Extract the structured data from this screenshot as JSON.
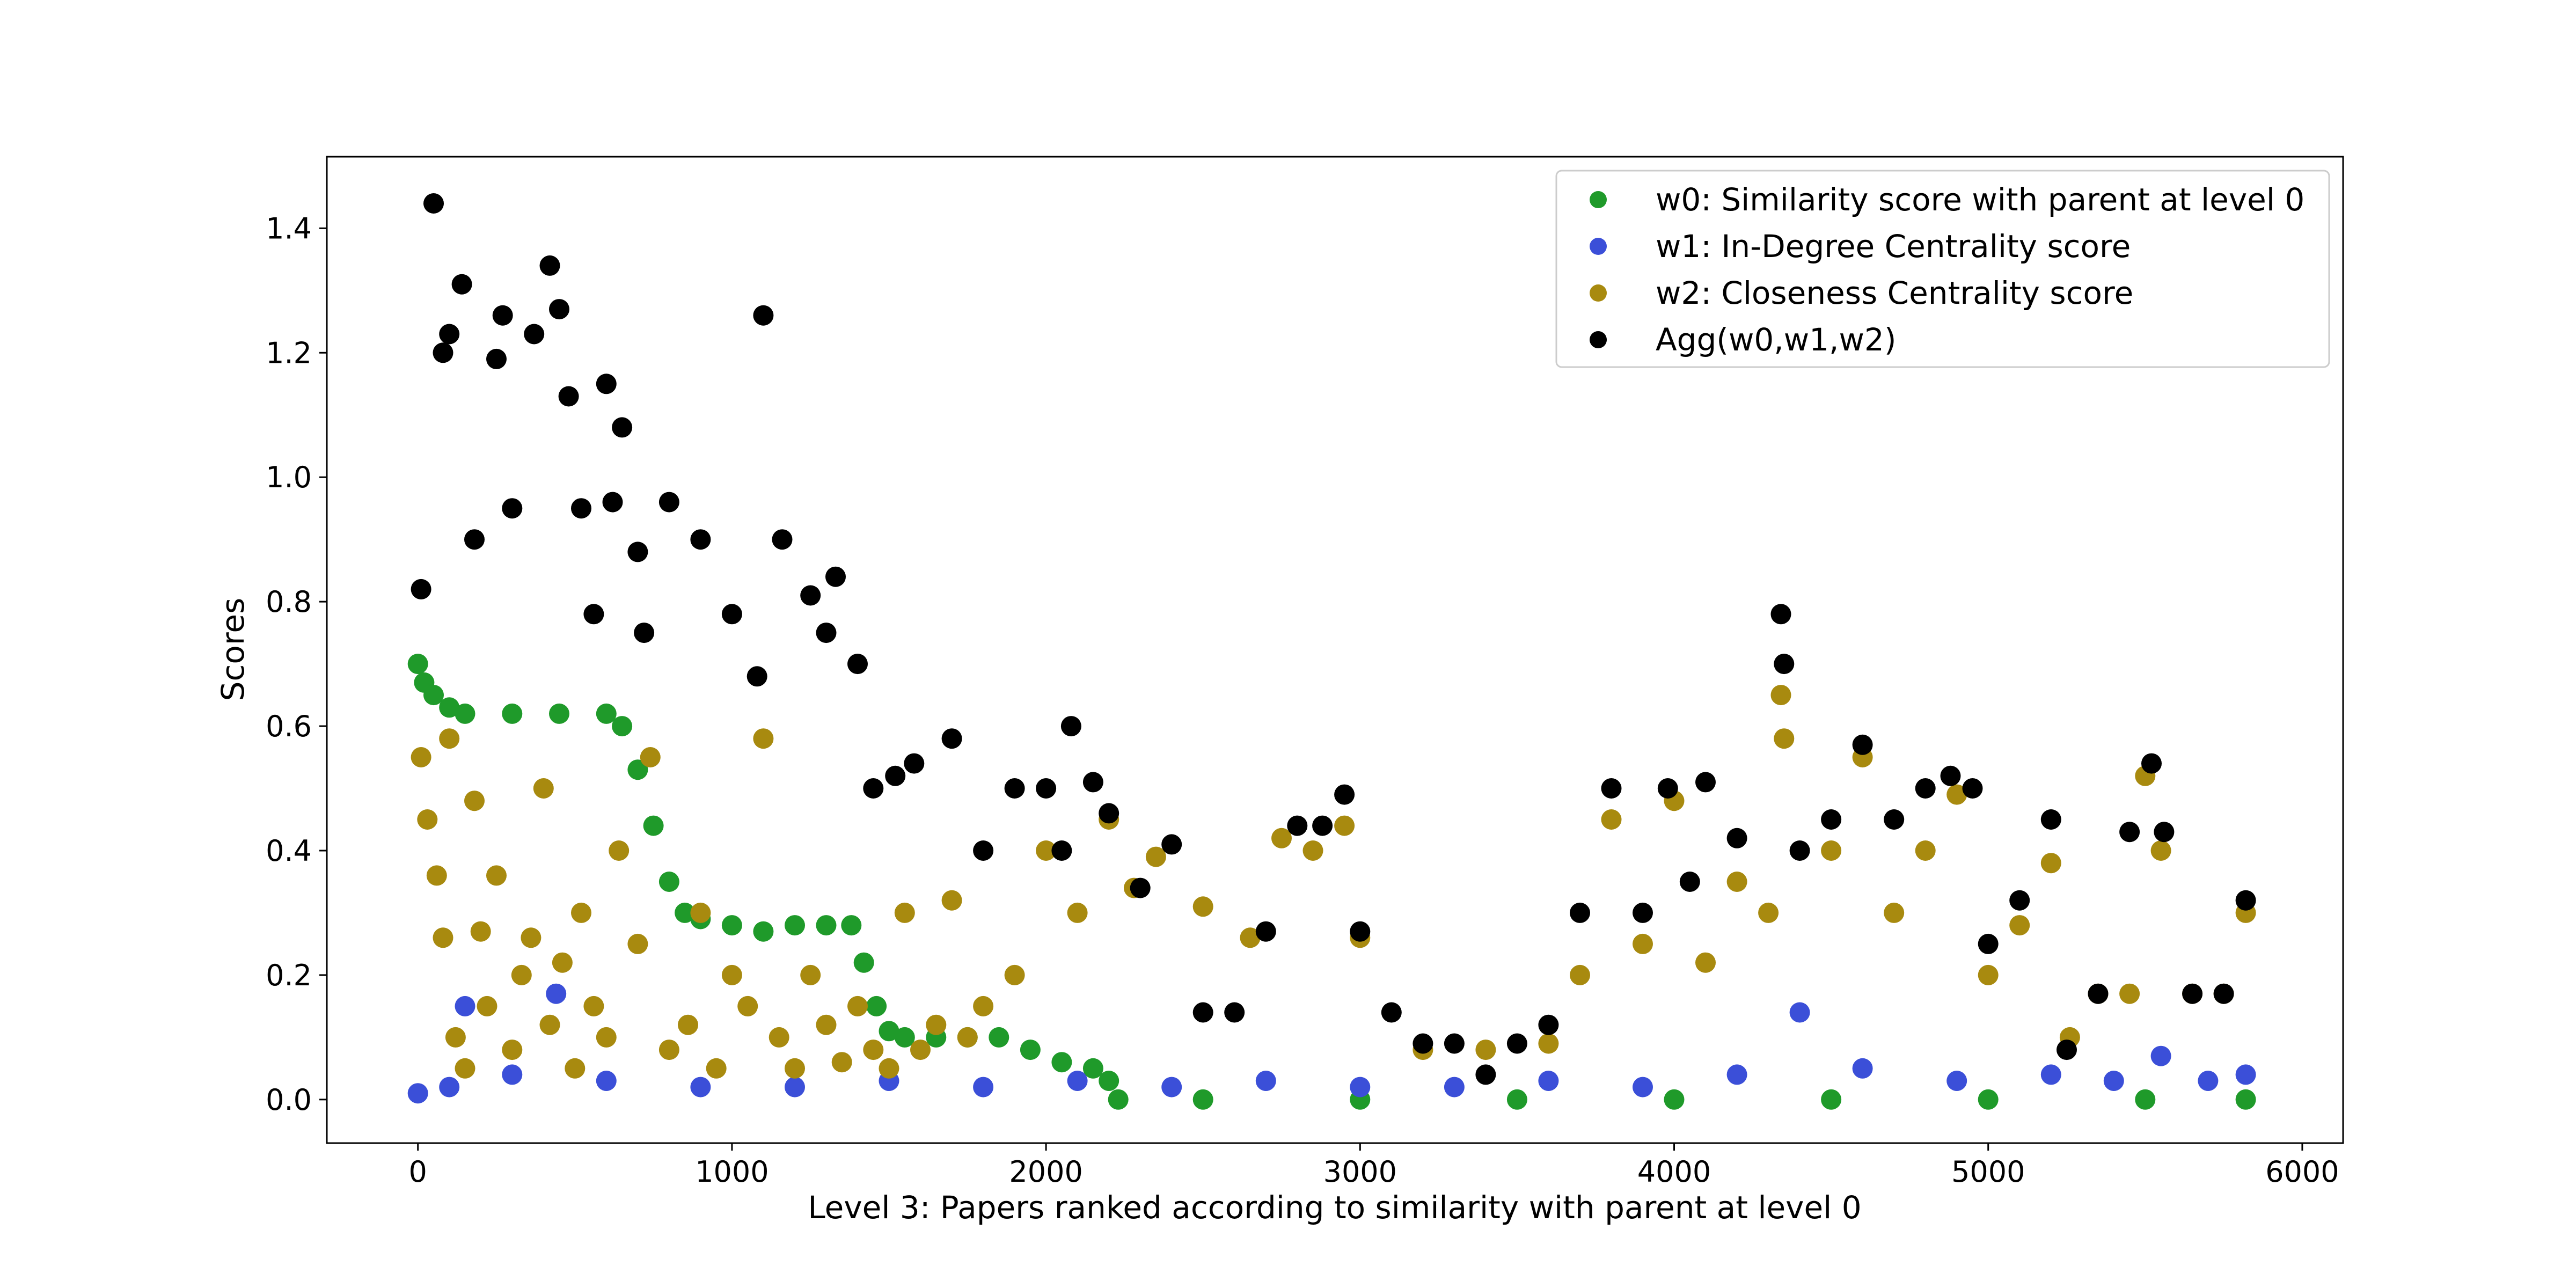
{
  "chart_data": {
    "type": "scatter",
    "title": "",
    "xlabel": "Level 3: Papers ranked according to similarity with parent at level 0",
    "ylabel": "Scores",
    "xlim": [
      -290,
      6130
    ],
    "ylim": [
      -0.07,
      1.515
    ],
    "x_ticks": [
      0,
      1000,
      2000,
      3000,
      4000,
      5000,
      6000
    ],
    "x_tick_labels": [
      "0",
      "1000",
      "2000",
      "3000",
      "4000",
      "5000",
      "6000"
    ],
    "y_ticks": [
      0.0,
      0.2,
      0.4,
      0.6,
      0.8,
      1.0,
      1.2,
      1.4
    ],
    "y_tick_labels": [
      "0.0",
      "0.2",
      "0.4",
      "0.6",
      "0.8",
      "1.0",
      "1.2",
      "1.4"
    ],
    "grid": false,
    "legend_position": "top-right",
    "series": [
      {
        "name": "w0: Similarity score with parent at level 0",
        "color": "#1f9a2a",
        "points": [
          [
            0,
            0.7
          ],
          [
            20,
            0.67
          ],
          [
            50,
            0.65
          ],
          [
            100,
            0.63
          ],
          [
            150,
            0.62
          ],
          [
            300,
            0.62
          ],
          [
            450,
            0.62
          ],
          [
            600,
            0.62
          ],
          [
            650,
            0.6
          ],
          [
            700,
            0.53
          ],
          [
            750,
            0.44
          ],
          [
            800,
            0.35
          ],
          [
            850,
            0.3
          ],
          [
            900,
            0.29
          ],
          [
            1000,
            0.28
          ],
          [
            1100,
            0.27
          ],
          [
            1200,
            0.28
          ],
          [
            1300,
            0.28
          ],
          [
            1380,
            0.28
          ],
          [
            1420,
            0.22
          ],
          [
            1460,
            0.15
          ],
          [
            1500,
            0.11
          ],
          [
            1550,
            0.1
          ],
          [
            1650,
            0.1
          ],
          [
            1750,
            0.1
          ],
          [
            1850,
            0.1
          ],
          [
            1950,
            0.08
          ],
          [
            2050,
            0.06
          ],
          [
            2150,
            0.05
          ],
          [
            2200,
            0.03
          ],
          [
            2230,
            0.0
          ],
          [
            2500,
            0.0
          ],
          [
            3000,
            0.0
          ],
          [
            3500,
            0.0
          ],
          [
            4000,
            0.0
          ],
          [
            4500,
            0.0
          ],
          [
            5000,
            0.0
          ],
          [
            5500,
            0.0
          ],
          [
            5820,
            0.0
          ]
        ]
      },
      {
        "name": "w1: In-Degree Centrality score",
        "color": "#3b4fd8",
        "points": [
          [
            0,
            0.01
          ],
          [
            100,
            0.02
          ],
          [
            150,
            0.15
          ],
          [
            300,
            0.04
          ],
          [
            440,
            0.17
          ],
          [
            600,
            0.03
          ],
          [
            900,
            0.02
          ],
          [
            1200,
            0.02
          ],
          [
            1500,
            0.03
          ],
          [
            1800,
            0.02
          ],
          [
            2100,
            0.03
          ],
          [
            2400,
            0.02
          ],
          [
            2700,
            0.03
          ],
          [
            3000,
            0.02
          ],
          [
            3300,
            0.02
          ],
          [
            3600,
            0.03
          ],
          [
            3900,
            0.02
          ],
          [
            4200,
            0.04
          ],
          [
            4400,
            0.14
          ],
          [
            4600,
            0.05
          ],
          [
            4900,
            0.03
          ],
          [
            5200,
            0.04
          ],
          [
            5400,
            0.03
          ],
          [
            5550,
            0.07
          ],
          [
            5700,
            0.03
          ],
          [
            5820,
            0.04
          ]
        ]
      },
      {
        "name": "w2: Closeness Centrality score",
        "color": "#a88a0f",
        "points": [
          [
            10,
            0.55
          ],
          [
            30,
            0.45
          ],
          [
            60,
            0.36
          ],
          [
            80,
            0.26
          ],
          [
            100,
            0.58
          ],
          [
            120,
            0.1
          ],
          [
            150,
            0.05
          ],
          [
            180,
            0.48
          ],
          [
            200,
            0.27
          ],
          [
            220,
            0.15
          ],
          [
            250,
            0.36
          ],
          [
            300,
            0.08
          ],
          [
            330,
            0.2
          ],
          [
            360,
            0.26
          ],
          [
            400,
            0.5
          ],
          [
            420,
            0.12
          ],
          [
            460,
            0.22
          ],
          [
            500,
            0.05
          ],
          [
            520,
            0.3
          ],
          [
            560,
            0.15
          ],
          [
            600,
            0.1
          ],
          [
            640,
            0.4
          ],
          [
            700,
            0.25
          ],
          [
            740,
            0.55
          ],
          [
            800,
            0.08
          ],
          [
            860,
            0.12
          ],
          [
            900,
            0.3
          ],
          [
            950,
            0.05
          ],
          [
            1000,
            0.2
          ],
          [
            1050,
            0.15
          ],
          [
            1100,
            0.58
          ],
          [
            1150,
            0.1
          ],
          [
            1200,
            0.05
          ],
          [
            1250,
            0.2
          ],
          [
            1300,
            0.12
          ],
          [
            1350,
            0.06
          ],
          [
            1400,
            0.15
          ],
          [
            1450,
            0.08
          ],
          [
            1500,
            0.05
          ],
          [
            1550,
            0.3
          ],
          [
            1600,
            0.08
          ],
          [
            1650,
            0.12
          ],
          [
            1700,
            0.32
          ],
          [
            1750,
            0.1
          ],
          [
            1800,
            0.15
          ],
          [
            1900,
            0.2
          ],
          [
            2000,
            0.4
          ],
          [
            2100,
            0.3
          ],
          [
            2200,
            0.45
          ],
          [
            2280,
            0.34
          ],
          [
            2350,
            0.39
          ],
          [
            2500,
            0.31
          ],
          [
            2650,
            0.26
          ],
          [
            2750,
            0.42
          ],
          [
            2850,
            0.4
          ],
          [
            2950,
            0.44
          ],
          [
            3000,
            0.26
          ],
          [
            3200,
            0.08
          ],
          [
            3400,
            0.08
          ],
          [
            3600,
            0.09
          ],
          [
            3700,
            0.2
          ],
          [
            3800,
            0.45
          ],
          [
            3900,
            0.25
          ],
          [
            4000,
            0.48
          ],
          [
            4100,
            0.22
          ],
          [
            4200,
            0.35
          ],
          [
            4300,
            0.3
          ],
          [
            4340,
            0.65
          ],
          [
            4350,
            0.58
          ],
          [
            4500,
            0.4
          ],
          [
            4600,
            0.55
          ],
          [
            4700,
            0.3
          ],
          [
            4800,
            0.4
          ],
          [
            4900,
            0.49
          ],
          [
            5000,
            0.2
          ],
          [
            5100,
            0.28
          ],
          [
            5200,
            0.38
          ],
          [
            5260,
            0.1
          ],
          [
            5350,
            0.17
          ],
          [
            5450,
            0.17
          ],
          [
            5500,
            0.52
          ],
          [
            5550,
            0.4
          ],
          [
            5650,
            0.17
          ],
          [
            5750,
            0.17
          ],
          [
            5820,
            0.3
          ]
        ]
      },
      {
        "name": "Agg(w0,w1,w2)",
        "color": "#000000",
        "points": [
          [
            10,
            0.82
          ],
          [
            50,
            1.44
          ],
          [
            80,
            1.2
          ],
          [
            100,
            1.23
          ],
          [
            140,
            1.31
          ],
          [
            180,
            0.9
          ],
          [
            250,
            1.19
          ],
          [
            270,
            1.26
          ],
          [
            300,
            0.95
          ],
          [
            370,
            1.23
          ],
          [
            420,
            1.34
          ],
          [
            450,
            1.27
          ],
          [
            480,
            1.13
          ],
          [
            520,
            0.95
          ],
          [
            560,
            0.78
          ],
          [
            600,
            1.15
          ],
          [
            620,
            0.96
          ],
          [
            650,
            1.08
          ],
          [
            700,
            0.88
          ],
          [
            720,
            0.75
          ],
          [
            800,
            0.96
          ],
          [
            900,
            0.9
          ],
          [
            1000,
            0.78
          ],
          [
            1080,
            0.68
          ],
          [
            1100,
            1.26
          ],
          [
            1160,
            0.9
          ],
          [
            1250,
            0.81
          ],
          [
            1300,
            0.75
          ],
          [
            1330,
            0.84
          ],
          [
            1400,
            0.7
          ],
          [
            1450,
            0.5
          ],
          [
            1520,
            0.52
          ],
          [
            1580,
            0.54
          ],
          [
            1700,
            0.58
          ],
          [
            1800,
            0.4
          ],
          [
            1900,
            0.5
          ],
          [
            2000,
            0.5
          ],
          [
            2050,
            0.4
          ],
          [
            2080,
            0.6
          ],
          [
            2150,
            0.51
          ],
          [
            2200,
            0.46
          ],
          [
            2300,
            0.34
          ],
          [
            2400,
            0.41
          ],
          [
            2500,
            0.14
          ],
          [
            2600,
            0.14
          ],
          [
            2700,
            0.27
          ],
          [
            2800,
            0.44
          ],
          [
            2880,
            0.44
          ],
          [
            2950,
            0.49
          ],
          [
            3000,
            0.27
          ],
          [
            3100,
            0.14
          ],
          [
            3200,
            0.09
          ],
          [
            3300,
            0.09
          ],
          [
            3400,
            0.04
          ],
          [
            3500,
            0.09
          ],
          [
            3600,
            0.12
          ],
          [
            3700,
            0.3
          ],
          [
            3800,
            0.5
          ],
          [
            3900,
            0.3
          ],
          [
            3980,
            0.5
          ],
          [
            4050,
            0.35
          ],
          [
            4100,
            0.51
          ],
          [
            4200,
            0.42
          ],
          [
            4340,
            0.78
          ],
          [
            4350,
            0.7
          ],
          [
            4400,
            0.4
          ],
          [
            4500,
            0.45
          ],
          [
            4600,
            0.57
          ],
          [
            4700,
            0.45
          ],
          [
            4800,
            0.5
          ],
          [
            4880,
            0.52
          ],
          [
            4950,
            0.5
          ],
          [
            5000,
            0.25
          ],
          [
            5100,
            0.32
          ],
          [
            5200,
            0.45
          ],
          [
            5250,
            0.08
          ],
          [
            5350,
            0.17
          ],
          [
            5450,
            0.43
          ],
          [
            5520,
            0.54
          ],
          [
            5560,
            0.43
          ],
          [
            5650,
            0.17
          ],
          [
            5750,
            0.17
          ],
          [
            5820,
            0.32
          ]
        ]
      }
    ]
  }
}
